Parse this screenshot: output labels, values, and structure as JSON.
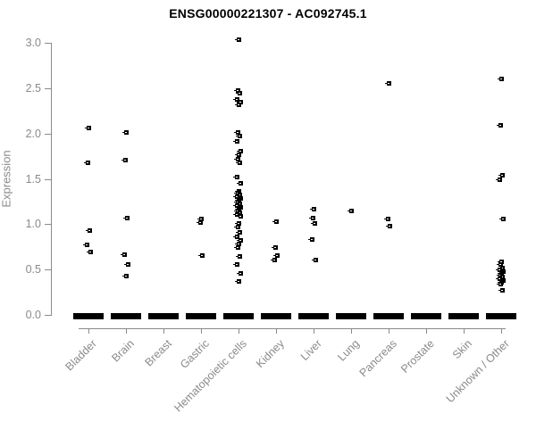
{
  "title": "ENSG00000221307 - AC092745.1",
  "axes": {
    "y_label": "Expression",
    "y_ticks": [
      "3.0",
      "2.5",
      "2.0",
      "1.5",
      "1.0",
      "0.5",
      "0.0"
    ],
    "x_categories": [
      "Bladder",
      "Brain",
      "Breast",
      "Gastric",
      "Hematopoietic cells",
      "Kidney",
      "Liver",
      "Lung",
      "Pancreas",
      "Prostate",
      "Skin",
      "Unknown / Other"
    ]
  },
  "colors": {
    "point": "#000000",
    "axis_and_labels": "#8a8a8a",
    "title": "#000000",
    "background": "#ffffff"
  },
  "chart_data": {
    "type": "scatter",
    "title": "ENSG00000221307 - AC092745.1",
    "xlabel": "",
    "ylabel": "Expression",
    "ylim": [
      0.0,
      3.0
    ],
    "y_tick_values": [
      3.0,
      2.5,
      2.0,
      1.5,
      1.0,
      0.5,
      0.0
    ],
    "grid": false,
    "legend": "none",
    "marker": "small-black-square",
    "categories": [
      "Bladder",
      "Brain",
      "Breast",
      "Gastric",
      "Hematopoietic cells",
      "Kidney",
      "Liver",
      "Lung",
      "Pancreas",
      "Prostate",
      "Skin",
      "Unknown / Other"
    ],
    "series": [
      {
        "name": "Bladder",
        "values": [
          2.06,
          1.67,
          0.93,
          0.77,
          0.69
        ],
        "zero_cluster": true
      },
      {
        "name": "Brain",
        "values": [
          2.01,
          1.7,
          1.06,
          0.66,
          0.55,
          0.42
        ],
        "zero_cluster": true
      },
      {
        "name": "Breast",
        "values": [],
        "zero_cluster": true
      },
      {
        "name": "Gastric",
        "values": [
          1.05,
          1.01,
          0.65
        ],
        "zero_cluster": true
      },
      {
        "name": "Hematopoietic cells",
        "values": [
          3.03,
          2.47,
          2.44,
          2.37,
          2.34,
          2.31,
          2.01,
          1.97,
          1.91,
          1.8,
          1.76,
          1.71,
          1.67,
          1.52,
          1.45,
          1.36,
          1.34,
          1.32,
          1.3,
          1.28,
          1.26,
          1.24,
          1.22,
          1.2,
          1.18,
          1.16,
          1.14,
          1.12,
          1.1,
          1.08,
          1.0,
          0.96,
          0.91,
          0.86,
          0.82,
          0.78,
          0.74,
          0.64,
          0.55,
          0.45,
          0.36
        ],
        "zero_cluster": true
      },
      {
        "name": "Kidney",
        "values": [
          1.02,
          0.74,
          0.65,
          0.6
        ],
        "zero_cluster": true
      },
      {
        "name": "Liver",
        "values": [
          1.16,
          1.06,
          1.0,
          0.83,
          0.6
        ],
        "zero_cluster": true
      },
      {
        "name": "Lung",
        "values": [
          1.14
        ],
        "zero_cluster": true
      },
      {
        "name": "Pancreas",
        "values": [
          2.55,
          1.05,
          0.97
        ],
        "zero_cluster": true
      },
      {
        "name": "Prostate",
        "values": [],
        "zero_cluster": true
      },
      {
        "name": "Skin",
        "values": [],
        "zero_cluster": true
      },
      {
        "name": "Unknown / Other",
        "values": [
          2.6,
          2.09,
          1.54,
          1.49,
          1.05,
          0.58,
          0.55,
          0.51,
          0.49,
          0.47,
          0.45,
          0.43,
          0.41,
          0.39,
          0.37,
          0.35,
          0.33,
          0.27
        ],
        "zero_cluster": true
      }
    ]
  }
}
